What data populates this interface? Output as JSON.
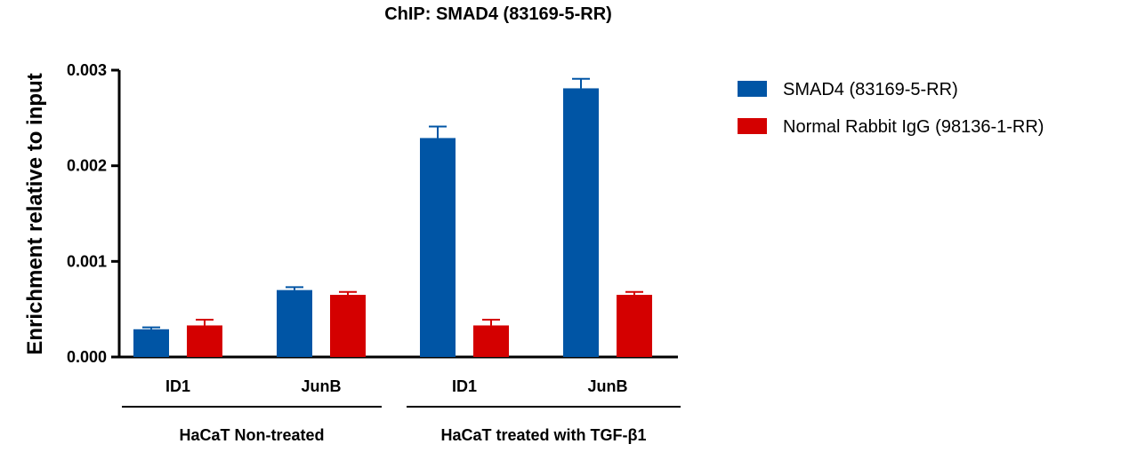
{
  "chart_data": {
    "type": "bar",
    "title": "ChIP: SMAD4 (83169-5-RR)",
    "ylabel": "Enrichment relative to input",
    "xlabel": "",
    "ylim": [
      0,
      0.003
    ],
    "yticks": [
      "0.000",
      "0.001",
      "0.002",
      "0.003"
    ],
    "categories": [
      "ID1",
      "JunB",
      "ID1",
      "JunB"
    ],
    "groups": [
      {
        "label": "HaCaT Non-treated",
        "categories": [
          0,
          1
        ]
      },
      {
        "label": "HaCaT treated with TGF-β1",
        "categories": [
          2,
          3
        ]
      }
    ],
    "series": [
      {
        "name": "SMAD4 (83169-5-RR)",
        "color": "#0055a5",
        "values": [
          0.00029,
          0.0007,
          0.00229,
          0.00281
        ],
        "errors": [
          2e-05,
          3e-05,
          0.00012,
          0.0001
        ]
      },
      {
        "name": "Normal Rabbit IgG (98136-1-RR)",
        "color": "#d40000",
        "values": [
          0.00033,
          0.00065,
          0.00033,
          0.00065
        ],
        "errors": [
          6e-05,
          3e-05,
          6e-05,
          3e-05
        ]
      }
    ],
    "legend_position": "top-right",
    "grid": false
  }
}
